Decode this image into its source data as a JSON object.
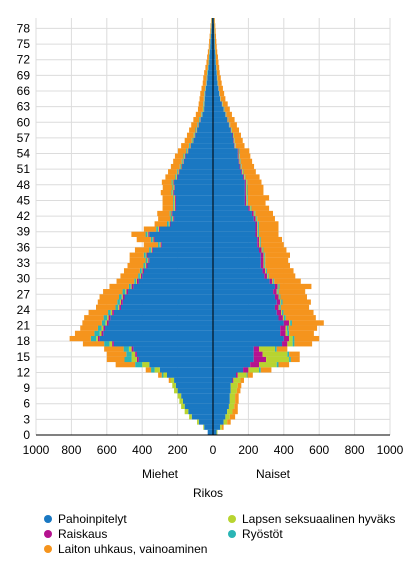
{
  "chart_data": {
    "type": "bar",
    "orientation": "horizontal-population-pyramid",
    "title": "",
    "xlabel": "",
    "ylabel": "",
    "xlim": [
      -1000,
      1000
    ],
    "x_ticks": [
      {
        "value": -1000,
        "label": "1000"
      },
      {
        "value": -800,
        "label": "800"
      },
      {
        "value": -600,
        "label": "600"
      },
      {
        "value": -400,
        "label": "400"
      },
      {
        "value": -200,
        "label": "200"
      },
      {
        "value": 0,
        "label": "0"
      },
      {
        "value": 200,
        "label": "200"
      },
      {
        "value": 400,
        "label": "400"
      },
      {
        "value": 600,
        "label": "600"
      },
      {
        "value": 800,
        "label": "800"
      },
      {
        "value": 1000,
        "label": "1000"
      }
    ],
    "y_ticks": [
      0,
      3,
      6,
      9,
      12,
      15,
      18,
      21,
      24,
      27,
      30,
      33,
      36,
      39,
      42,
      45,
      48,
      51,
      54,
      57,
      60,
      63,
      66,
      69,
      72,
      75,
      78
    ],
    "grid": true,
    "group_labels": {
      "left": "Miehet",
      "right": "Naiset"
    },
    "legend_title": "Rikos",
    "legend_position": "bottom",
    "series": [
      {
        "name": "Pahoinpitelyt",
        "color": "#1a78c2"
      },
      {
        "name": "Raiskaus",
        "color": "#b5128f"
      },
      {
        "name": "Laiton uhkaus, vainoaminen",
        "color": "#f5941d"
      },
      {
        "name": "Lapsen seksuaalinen hyväks",
        "color": "#b8d430"
      },
      {
        "name": "Ryöstöt",
        "color": "#2ab5b5"
      }
    ],
    "ages": [
      0,
      1,
      2,
      3,
      4,
      5,
      6,
      7,
      8,
      9,
      10,
      11,
      12,
      13,
      14,
      15,
      16,
      17,
      18,
      19,
      20,
      21,
      22,
      23,
      24,
      25,
      26,
      27,
      28,
      29,
      30,
      31,
      32,
      33,
      34,
      35,
      36,
      37,
      38,
      39,
      40,
      41,
      42,
      43,
      44,
      45,
      46,
      47,
      48,
      49,
      50,
      51,
      52,
      53,
      54,
      55,
      56,
      57,
      58,
      59,
      60,
      61,
      62,
      63,
      64,
      65,
      66,
      67,
      68,
      69,
      70,
      71,
      72,
      73,
      74,
      75,
      76,
      77,
      78,
      79
    ],
    "men": {
      "Pahoinpitelyt": [
        30,
        50,
        80,
        120,
        140,
        160,
        170,
        180,
        200,
        210,
        220,
        260,
        300,
        360,
        420,
        430,
        450,
        560,
        640,
        620,
        610,
        590,
        580,
        560,
        520,
        510,
        500,
        480,
        450,
        420,
        400,
        390,
        370,
        360,
        370,
        340,
        290,
        330,
        360,
        300,
        240,
        220,
        230,
        210,
        210,
        210,
        220,
        215,
        220,
        200,
        190,
        175,
        165,
        155,
        140,
        125,
        110,
        100,
        90,
        80,
        70,
        60,
        50,
        48,
        46,
        44,
        40,
        35,
        32,
        30,
        26,
        22,
        20,
        18,
        16,
        14,
        12,
        10,
        8,
        6
      ],
      "Raiskaus": [
        0,
        0,
        0,
        0,
        0,
        0,
        0,
        0,
        0,
        0,
        0,
        0,
        0,
        0,
        10,
        10,
        10,
        10,
        10,
        10,
        10,
        10,
        10,
        10,
        10,
        10,
        10,
        10,
        10,
        10,
        8,
        8,
        8,
        6,
        6,
        6,
        6,
        6,
        6,
        6,
        5,
        5,
        5,
        5,
        5,
        5,
        5,
        4,
        4,
        4,
        4,
        3,
        3,
        3,
        3,
        2,
        2,
        2,
        2,
        2,
        2,
        1,
        1,
        1,
        1,
        1,
        1,
        1,
        1,
        0,
        0,
        0,
        0,
        0,
        0,
        0,
        0,
        0,
        0,
        0
      ],
      "Lapsen seksuaalinen hyväks": [
        0,
        5,
        10,
        15,
        20,
        20,
        20,
        20,
        20,
        20,
        20,
        20,
        30,
        40,
        30,
        20,
        15,
        15,
        10,
        10,
        10,
        8,
        8,
        8,
        6,
        6,
        6,
        6,
        5,
        5,
        5,
        5,
        5,
        5,
        5,
        5,
        5,
        5,
        5,
        5,
        5,
        5,
        5,
        5,
        5,
        5,
        5,
        5,
        5,
        5,
        5,
        5,
        4,
        4,
        4,
        4,
        4,
        3,
        3,
        3,
        3,
        3,
        3,
        3,
        2,
        2,
        2,
        2,
        2,
        2,
        1,
        1,
        1,
        1,
        1,
        1,
        1,
        1,
        1,
        1
      ],
      "Ryöstöt": [
        0,
        0,
        0,
        0,
        0,
        0,
        0,
        0,
        0,
        0,
        0,
        10,
        20,
        40,
        40,
        30,
        30,
        30,
        30,
        30,
        20,
        20,
        20,
        15,
        15,
        15,
        15,
        15,
        10,
        10,
        10,
        10,
        10,
        10,
        10,
        10,
        10,
        10,
        10,
        10,
        10,
        10,
        5,
        5,
        5,
        5,
        5,
        5,
        5,
        5,
        5,
        5,
        5,
        5,
        5,
        5,
        4,
        4,
        4,
        4,
        4,
        3,
        3,
        3,
        3,
        3,
        2,
        2,
        2,
        2,
        2,
        2,
        2,
        2,
        1,
        1,
        1,
        1,
        1,
        1
      ],
      "Laiton uhkaus, vainoaminen": [
        0,
        0,
        0,
        0,
        0,
        0,
        0,
        0,
        0,
        0,
        10,
        20,
        30,
        110,
        100,
        110,
        110,
        120,
        120,
        110,
        100,
        110,
        110,
        110,
        110,
        110,
        110,
        110,
        110,
        100,
        100,
        90,
        90,
        90,
        80,
        80,
        80,
        80,
        80,
        70,
        70,
        70,
        70,
        60,
        60,
        60,
        60,
        55,
        55,
        55,
        50,
        50,
        48,
        48,
        46,
        44,
        40,
        38,
        36,
        34,
        32,
        30,
        28,
        26,
        24,
        22,
        20,
        18,
        18,
        16,
        14,
        12,
        10,
        8,
        6,
        6,
        5,
        4,
        4,
        3
      ]
    },
    "women": {
      "Pahoinpitelyt": [
        20,
        40,
        60,
        70,
        80,
        90,
        95,
        95,
        100,
        100,
        110,
        130,
        170,
        210,
        230,
        230,
        230,
        390,
        400,
        380,
        380,
        400,
        370,
        360,
        350,
        360,
        350,
        340,
        350,
        320,
        290,
        280,
        270,
        270,
        270,
        260,
        250,
        250,
        240,
        240,
        240,
        230,
        220,
        200,
        180,
        180,
        180,
        180,
        180,
        170,
        160,
        150,
        145,
        140,
        140,
        120,
        115,
        110,
        100,
        90,
        80,
        70,
        60,
        50,
        40,
        35,
        30,
        25,
        22,
        20,
        18,
        15,
        14,
        12,
        10,
        9,
        8,
        7,
        6,
        5
      ],
      "Raiskaus": [
        0,
        0,
        0,
        0,
        0,
        0,
        0,
        0,
        0,
        0,
        5,
        10,
        30,
        50,
        70,
        50,
        30,
        30,
        30,
        30,
        30,
        30,
        25,
        25,
        20,
        20,
        20,
        20,
        15,
        15,
        15,
        15,
        15,
        15,
        15,
        15,
        10,
        10,
        10,
        10,
        10,
        10,
        10,
        8,
        8,
        8,
        6,
        6,
        6,
        6,
        5,
        5,
        4,
        4,
        4,
        3,
        3,
        3,
        2,
        2,
        2,
        1,
        1,
        1,
        1,
        1,
        1,
        1,
        1,
        0,
        0,
        0,
        0,
        0,
        0,
        0,
        0,
        0,
        0,
        0
      ],
      "Lapsen seksuaalinen hyväks": [
        5,
        10,
        20,
        25,
        30,
        30,
        30,
        30,
        35,
        40,
        40,
        50,
        60,
        100,
        130,
        140,
        90,
        30,
        20,
        10,
        8,
        6,
        6,
        5,
        5,
        5,
        5,
        5,
        5,
        5,
        5,
        5,
        5,
        5,
        5,
        5,
        5,
        5,
        5,
        5,
        5,
        5,
        5,
        5,
        5,
        5,
        5,
        5,
        5,
        4,
        4,
        4,
        4,
        4,
        3,
        3,
        3,
        3,
        3,
        3,
        3,
        2,
        2,
        2,
        2,
        2,
        2,
        2,
        2,
        1,
        1,
        1,
        1,
        1,
        1,
        1,
        1,
        1,
        1,
        1
      ],
      "Ryöstöt": [
        0,
        0,
        0,
        0,
        0,
        0,
        0,
        0,
        0,
        0,
        0,
        5,
        10,
        10,
        10,
        10,
        10,
        10,
        10,
        10,
        10,
        10,
        10,
        8,
        8,
        8,
        6,
        6,
        6,
        6,
        5,
        5,
        5,
        5,
        5,
        5,
        5,
        5,
        5,
        5,
        5,
        5,
        4,
        4,
        4,
        4,
        4,
        4,
        3,
        3,
        3,
        3,
        3,
        3,
        3,
        2,
        2,
        2,
        2,
        2,
        2,
        2,
        2,
        2,
        1,
        1,
        1,
        1,
        1,
        1,
        1,
        1,
        1,
        1,
        1,
        1,
        1,
        1,
        1,
        1
      ],
      "Laiton uhkaus, vainoaminen": [
        0,
        10,
        20,
        30,
        30,
        20,
        20,
        20,
        20,
        20,
        20,
        30,
        60,
        60,
        50,
        60,
        60,
        100,
        140,
        140,
        160,
        180,
        170,
        170,
        160,
        160,
        150,
        150,
        180,
        150,
        150,
        150,
        140,
        130,
        140,
        130,
        130,
        120,
        110,
        110,
        110,
        100,
        100,
        100,
        100,
        120,
        90,
        90,
        80,
        80,
        70,
        70,
        65,
        60,
        55,
        50,
        45,
        40,
        40,
        38,
        35,
        32,
        30,
        28,
        26,
        24,
        22,
        20,
        18,
        16,
        15,
        14,
        12,
        10,
        9,
        8,
        7,
        6,
        5,
        4
      ]
    }
  }
}
